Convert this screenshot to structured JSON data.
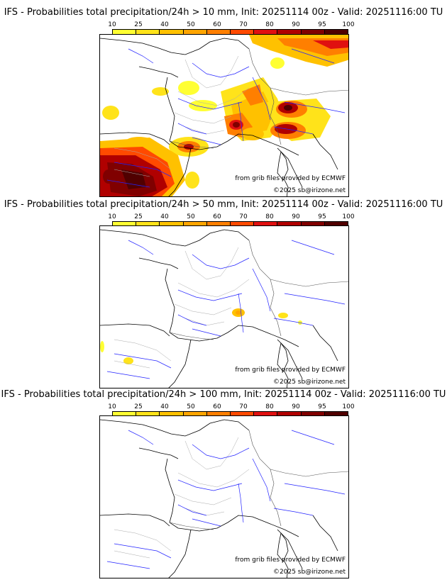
{
  "legend": {
    "ticks": [
      "10",
      "25",
      "40",
      "50",
      "60",
      "70",
      "80",
      "90",
      "95",
      "100"
    ],
    "colors": [
      "#ffff33",
      "#ffe31a",
      "#ffc100",
      "#ffa500",
      "#ff7f00",
      "#ff4a00",
      "#e01010",
      "#b00000",
      "#800000",
      "#500000"
    ]
  },
  "credits": {
    "source": "from grib files provided by ECMWF",
    "copyright": "©2025 sb@irizone.net"
  },
  "panels": [
    {
      "title": "IFS - Probabilities total precipitation/24h > 10 mm, Init: 20251114 00z - Valid: 20251116:00 TU"
    },
    {
      "title": "IFS - Probabilities total precipitation/24h > 50 mm, Init: 20251114 00z - Valid: 20251116:00 TU"
    },
    {
      "title": "IFS - Probabilities total precipitation/24h > 100 mm, Init: 20251114 00z - Valid: 20251116:00 TU"
    }
  ]
}
